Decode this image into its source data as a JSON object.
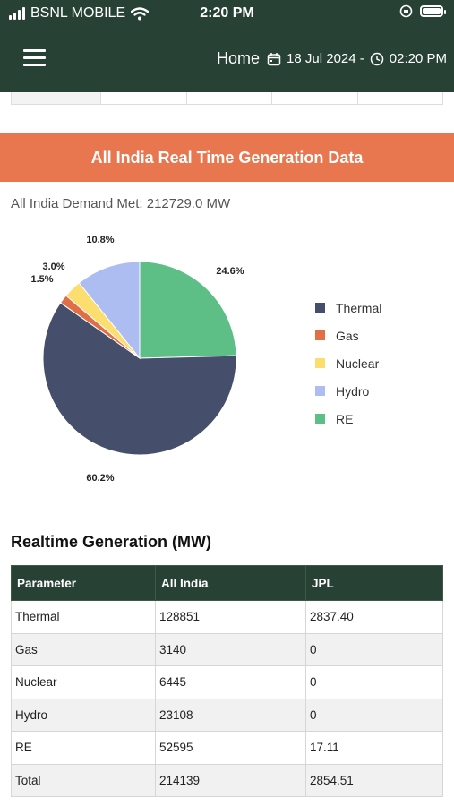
{
  "status_bar": {
    "carrier": "BSNL MOBILE",
    "time": "2:20 PM"
  },
  "app_bar": {
    "title": "Home",
    "date": "18 Jul 2024 -",
    "clock_time": "02:20 PM"
  },
  "banner": {
    "title": "All India Real Time Generation Data"
  },
  "demand": {
    "text": "All India Demand Met: 212729.0 MW"
  },
  "chart_data": {
    "type": "pie",
    "categories": [
      "Thermal",
      "Gas",
      "Nuclear",
      "Hydro",
      "RE"
    ],
    "values": [
      60.2,
      1.5,
      3.0,
      10.8,
      24.6
    ],
    "labels": [
      "60.2%",
      "1.5%",
      "3.0%",
      "10.8%",
      "24.6%"
    ],
    "colors": [
      "#454e6b",
      "#e06f48",
      "#fbde6e",
      "#aebdf1",
      "#5dbf86"
    ],
    "legend": "right"
  },
  "realtime": {
    "title": "Realtime Generation (MW)",
    "headers": [
      "Parameter",
      "All India",
      "JPL"
    ],
    "rows": [
      [
        "Thermal",
        "128851",
        "2837.40"
      ],
      [
        "Gas",
        "3140",
        "0"
      ],
      [
        "Nuclear",
        "6445",
        "0"
      ],
      [
        "Hydro",
        "23108",
        "0"
      ],
      [
        "RE",
        "52595",
        "17.11"
      ],
      [
        "Total",
        "214139",
        "2854.51"
      ]
    ]
  },
  "icons": {
    "menu": "hamburger-icon",
    "calendar": "calendar-icon",
    "clock": "clock-icon",
    "wifi": "wifi-icon",
    "signal": "signal-icon",
    "battery": "battery-icon",
    "rotation_lock": "rotation-lock-icon"
  }
}
